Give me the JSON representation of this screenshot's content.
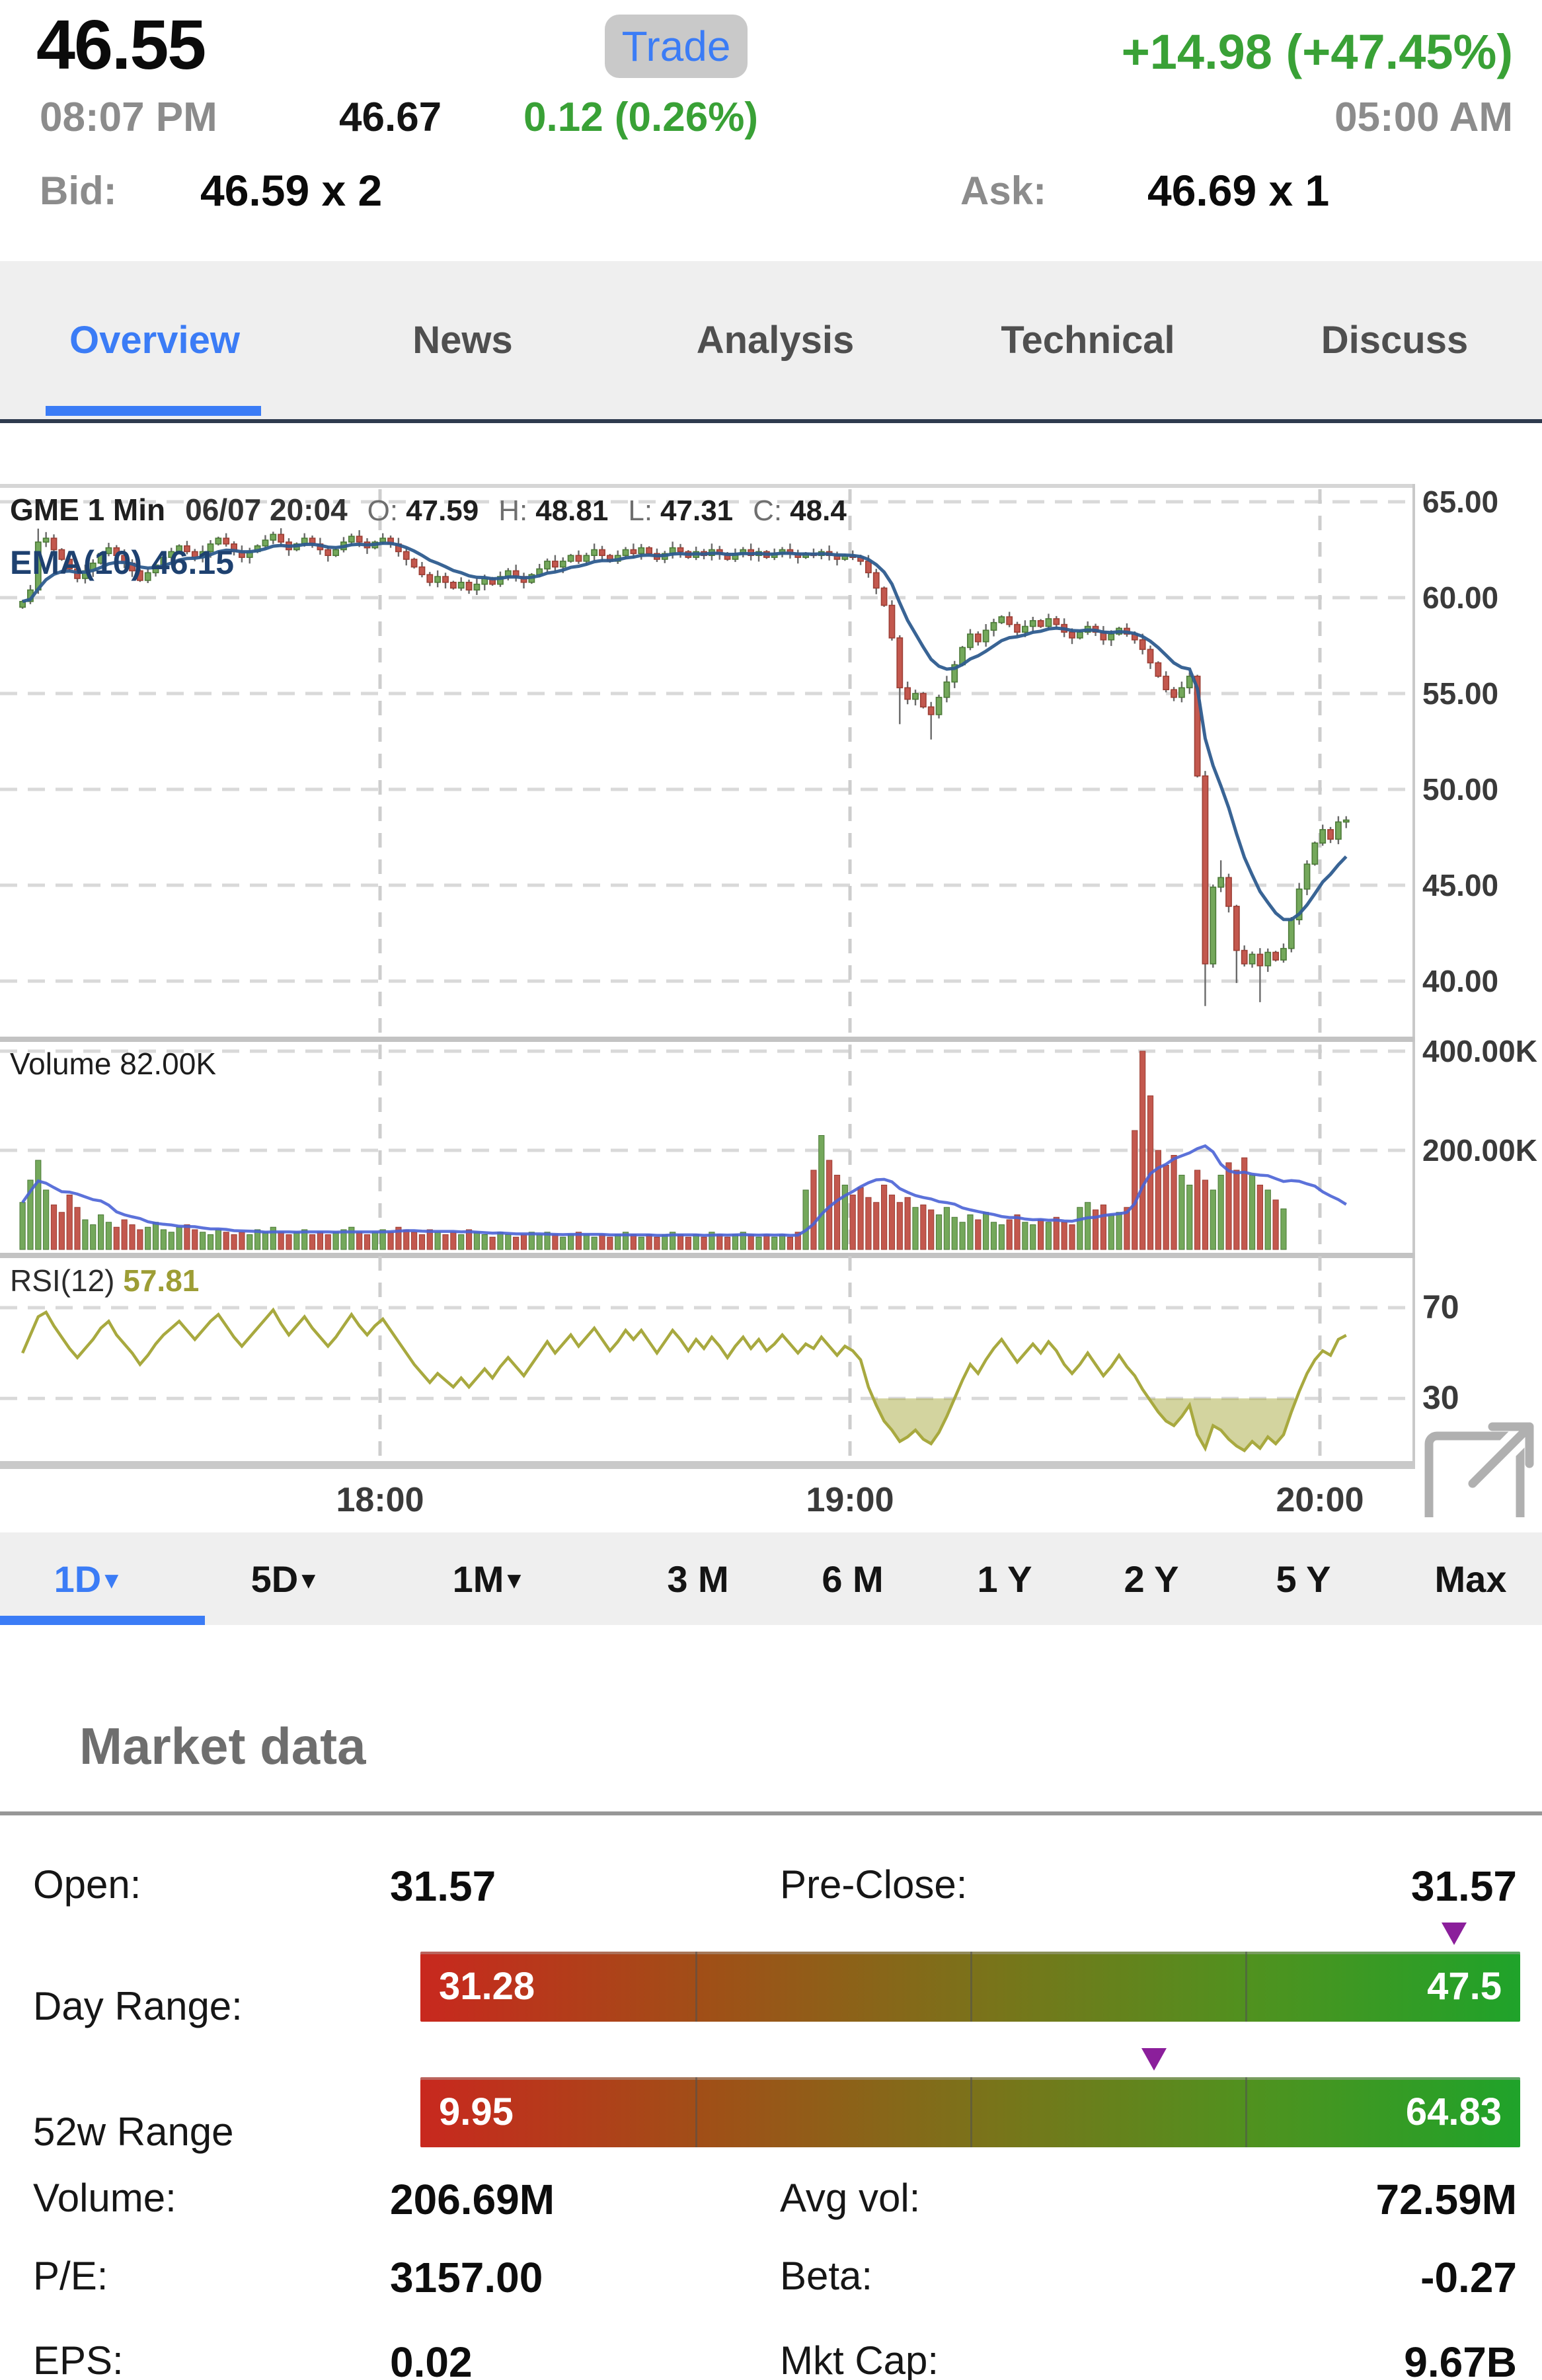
{
  "quote": {
    "price": "46.55",
    "trade_label": "Trade",
    "change": "+14.98 (+47.45%)",
    "time_left": "08:07 PM",
    "ext_price": "46.67",
    "ext_change": "0.12 (0.26%)",
    "time_right": "05:00 AM",
    "bid_label": "Bid:",
    "bid_value": "46.59 x 2",
    "ask_label": "Ask:",
    "ask_value": "46.69 x 1"
  },
  "colors": {
    "accent_blue": "#3b7cf6",
    "up_green_text": "#39a136",
    "marker_purple": "#8b1f9b"
  },
  "tabs": [
    {
      "label": "Overview",
      "active": true
    },
    {
      "label": "News"
    },
    {
      "label": "Analysis"
    },
    {
      "label": "Technical"
    },
    {
      "label": "Discuss"
    }
  ],
  "range_tabs": [
    {
      "label": "1D",
      "caret": "▾",
      "active": true
    },
    {
      "label": "5D",
      "caret": "▾"
    },
    {
      "label": "1M",
      "caret": "▾"
    },
    {
      "label": "3 M"
    },
    {
      "label": "6 M"
    },
    {
      "label": "1 Y"
    },
    {
      "label": "2 Y"
    },
    {
      "label": "5 Y"
    },
    {
      "label": "Max"
    }
  ],
  "chart_data": {
    "type": "candlestick",
    "title": "GME 1 Min intraday chart with EMA(10), Volume and RSI(12) panes",
    "header": {
      "symbol": "GME",
      "interval": "1 Min",
      "datetime": "06/07 20:04",
      "o_label": "O:",
      "o": "47.59",
      "h_label": "H:",
      "h": "48.81",
      "l_label": "L:",
      "l": "47.31",
      "c_label": "C:",
      "c": "48.4"
    },
    "ema_label": "EMA(10) 46.15",
    "volume_label": "Volume",
    "volume_value": "82.00K",
    "rsi_label": "RSI(12)",
    "rsi_value": "57.81",
    "y_axis_price": [
      "65.00",
      "60.00",
      "55.00",
      "50.00",
      "45.00",
      "40.00"
    ],
    "y_axis_volume": [
      {
        "label": "400.00K",
        "value": 400
      },
      {
        "label": "200.00K",
        "value": 200
      }
    ],
    "y_axis_rsi": [
      {
        "label": "70",
        "value": 70
      },
      {
        "label": "30",
        "value": 30
      }
    ],
    "x_axis": [
      "18:00",
      "19:00",
      "20:00"
    ],
    "price_axis_range": [
      37.1,
      66.0
    ],
    "open_first": 59.5,
    "closes": [
      59.8,
      60.4,
      62.9,
      63.1,
      62.5,
      62.0,
      61.5,
      61.0,
      61.4,
      61.8,
      62.3,
      62.6,
      62.2,
      61.8,
      61.4,
      60.9,
      61.3,
      61.7,
      62.1,
      62.4,
      62.7,
      62.4,
      62.1,
      62.4,
      62.8,
      63.1,
      62.8,
      62.4,
      62.1,
      62.4,
      62.7,
      63.0,
      63.3,
      62.9,
      62.5,
      62.8,
      63.1,
      62.8,
      62.5,
      62.2,
      62.5,
      62.9,
      63.2,
      62.9,
      62.6,
      62.9,
      63.1,
      62.8,
      62.4,
      62.0,
      61.6,
      61.2,
      60.8,
      61.1,
      60.8,
      60.5,
      60.8,
      60.4,
      60.7,
      61.0,
      60.7,
      61.1,
      61.4,
      61.1,
      60.8,
      61.2,
      61.5,
      61.9,
      61.6,
      61.9,
      62.2,
      61.9,
      62.2,
      62.5,
      62.2,
      61.9,
      62.2,
      62.5,
      62.3,
      62.6,
      62.3,
      62.0,
      62.3,
      62.6,
      62.4,
      62.1,
      62.4,
      62.2,
      62.5,
      62.3,
      62.0,
      62.3,
      62.5,
      62.2,
      62.4,
      62.1,
      62.3,
      62.5,
      62.3,
      62.1,
      62.3,
      62.2,
      62.4,
      62.2,
      62.0,
      62.2,
      62.1,
      61.9,
      61.3,
      60.5,
      59.6,
      57.9,
      55.3,
      54.7,
      55.0,
      54.3,
      53.9,
      54.8,
      55.6,
      56.5,
      57.4,
      58.1,
      57.7,
      58.3,
      58.7,
      59.0,
      58.6,
      58.2,
      58.5,
      58.8,
      58.5,
      58.9,
      58.6,
      58.2,
      57.9,
      58.2,
      58.5,
      58.2,
      57.8,
      58.1,
      58.4,
      58.1,
      57.8,
      57.3,
      56.6,
      55.9,
      55.2,
      54.8,
      55.3,
      55.9,
      50.7,
      40.9,
      44.9,
      45.4,
      43.9,
      41.6,
      40.9,
      41.4,
      40.8,
      41.5,
      41.1,
      41.7,
      43.2,
      44.8,
      46.1,
      47.2,
      47.9,
      47.4,
      48.3,
      48.4
    ],
    "volumes_k": [
      95,
      140,
      180,
      120,
      90,
      75,
      110,
      85,
      60,
      50,
      70,
      55,
      45,
      60,
      50,
      40,
      45,
      55,
      40,
      35,
      45,
      50,
      40,
      35,
      30,
      40,
      35,
      30,
      35,
      30,
      40,
      35,
      45,
      35,
      30,
      35,
      40,
      30,
      35,
      30,
      35,
      40,
      45,
      35,
      30,
      35,
      40,
      35,
      45,
      40,
      35,
      30,
      40,
      35,
      30,
      35,
      30,
      40,
      35,
      30,
      25,
      35,
      30,
      25,
      30,
      35,
      30,
      35,
      30,
      25,
      30,
      35,
      30,
      25,
      30,
      25,
      30,
      35,
      30,
      25,
      30,
      25,
      30,
      35,
      30,
      25,
      30,
      25,
      35,
      30,
      25,
      30,
      35,
      30,
      25,
      30,
      25,
      30,
      25,
      35,
      120,
      160,
      230,
      180,
      150,
      130,
      110,
      125,
      105,
      95,
      130,
      110,
      95,
      105,
      85,
      90,
      80,
      70,
      85,
      65,
      55,
      70,
      60,
      75,
      55,
      50,
      60,
      70,
      55,
      50,
      60,
      55,
      65,
      55,
      50,
      85,
      95,
      80,
      90,
      70,
      75,
      85,
      240,
      400,
      310,
      200,
      170,
      190,
      150,
      130,
      160,
      140,
      120,
      150,
      175,
      160,
      185,
      150,
      130,
      120,
      100,
      82
    ],
    "rsi": [
      50,
      58,
      66,
      68,
      62,
      57,
      52,
      48,
      52,
      56,
      61,
      64,
      58,
      54,
      50,
      45,
      49,
      54,
      58,
      61,
      64,
      60,
      56,
      60,
      64,
      67,
      62,
      57,
      53,
      57,
      61,
      65,
      69,
      63,
      58,
      62,
      66,
      61,
      57,
      53,
      57,
      62,
      67,
      62,
      58,
      62,
      65,
      60,
      55,
      50,
      45,
      41,
      37,
      41,
      38,
      35,
      39,
      35,
      39,
      43,
      39,
      44,
      48,
      44,
      40,
      45,
      50,
      55,
      50,
      54,
      58,
      53,
      57,
      61,
      56,
      51,
      55,
      60,
      56,
      60,
      55,
      50,
      55,
      60,
      56,
      51,
      56,
      52,
      57,
      53,
      48,
      53,
      57,
      52,
      56,
      51,
      54,
      58,
      54,
      50,
      54,
      52,
      57,
      53,
      49,
      53,
      51,
      47,
      35,
      27,
      20,
      16,
      11,
      13,
      16,
      12,
      10,
      15,
      22,
      30,
      38,
      45,
      41,
      47,
      52,
      56,
      51,
      46,
      50,
      54,
      50,
      55,
      51,
      45,
      41,
      45,
      50,
      45,
      40,
      44,
      49,
      44,
      40,
      34,
      29,
      24,
      20,
      18,
      22,
      27,
      14,
      8,
      18,
      16,
      12,
      9,
      7,
      11,
      8,
      13,
      10,
      14,
      24,
      33,
      41,
      47,
      51,
      49,
      56,
      57.8
    ],
    "wick_low_overrides": {
      "112": 53.4,
      "116": 52.6,
      "151": 38.7,
      "155": 39.9,
      "158": 38.9
    },
    "wick_high_overrides": {
      "2": 63.6,
      "153": 46.3,
      "168": 48.6
    },
    "rsi_bands": [
      70,
      30
    ],
    "colors": {
      "up": "#74a85b",
      "up_border": "#4c7a38",
      "down": "#c3584e",
      "down_border": "#9c3f35",
      "ema": "#2e5c8f",
      "vol_ma": "#4a63d6",
      "rsi": "#a8a93f",
      "grid": "#d9d9d9",
      "vgrid": "#cdcdcd",
      "frame": "#c3c3c3",
      "axis_text": "#3a3a3a"
    }
  },
  "market": {
    "heading": "Market data",
    "open_label": "Open:",
    "open": "31.57",
    "preclose_label": "Pre-Close:",
    "preclose": "31.57",
    "day_range": {
      "label": "Day Range:",
      "low": "31.28",
      "high": "47.5",
      "marker_pct": 94
    },
    "week52_range": {
      "label": "52w Range",
      "low": "9.95",
      "high": "64.83",
      "marker_pct": 66.7
    },
    "volume_label": "Volume:",
    "volume": "206.69M",
    "avgvol_label": "Avg vol:",
    "avgvol": "72.59M",
    "pe_label": "P/E:",
    "pe": "3157.00",
    "beta_label": "Beta:",
    "beta": "-0.27",
    "eps_label": "EPS:",
    "eps": "0.02",
    "mktcap_label": "Mkt Cap:",
    "mktcap": "9.67B"
  }
}
